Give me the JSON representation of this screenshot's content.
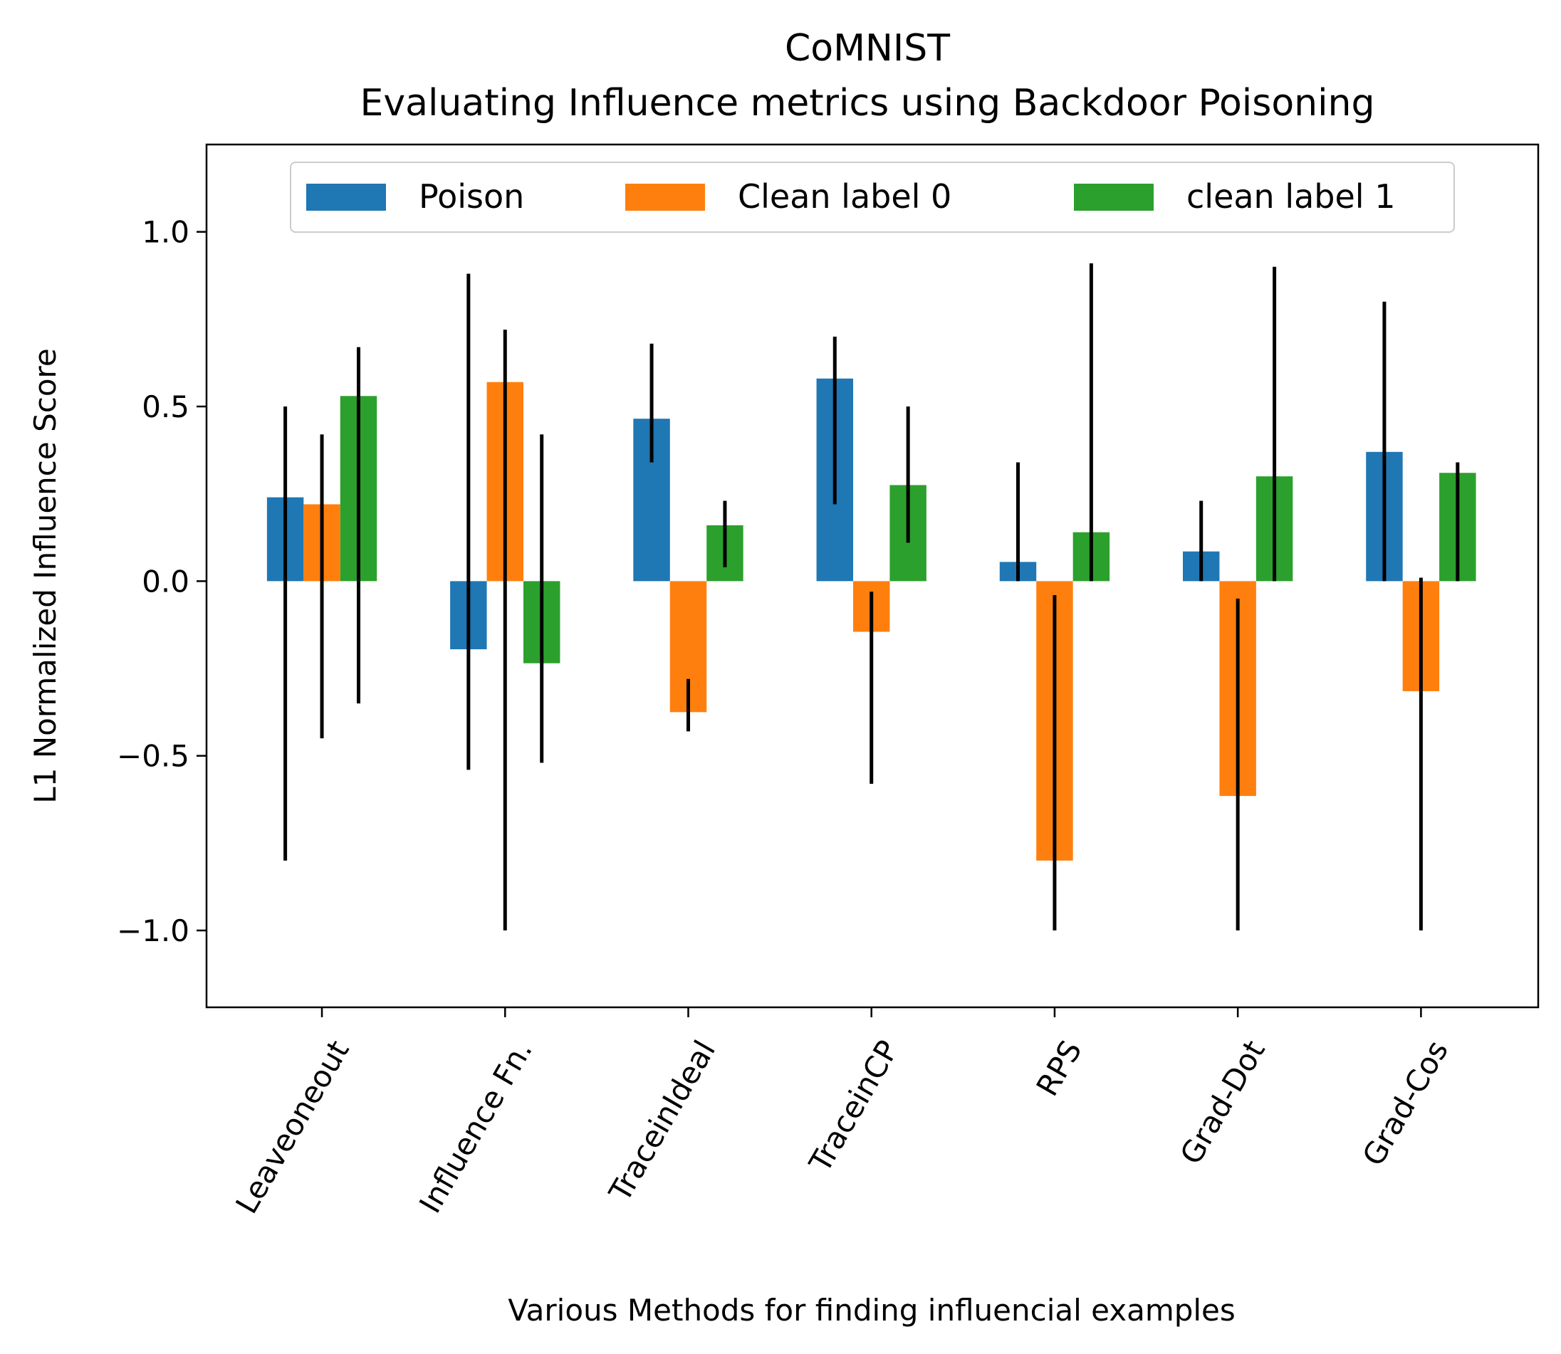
{
  "chart_data": {
    "type": "bar",
    "title_line1": "CoMNIST",
    "title_line2": "Evaluating Influence metrics using Backdoor Poisoning",
    "xlabel": "Various Methods for finding influencial examples",
    "ylabel": "L1 Normalized Influence Score",
    "ylim": [
      -1.22,
      1.25
    ],
    "yticks": [
      -1.0,
      -0.5,
      0.0,
      0.5,
      1.0
    ],
    "ytick_labels": [
      "−1.0",
      "−0.5",
      "0.0",
      "0.5",
      "1.0"
    ],
    "grid": false,
    "legend_position": "top-center",
    "categories": [
      "Leaveoneout",
      "Influence Fn.",
      "TraceinIdeal",
      "TraceinCP",
      "RPS",
      "Grad-Dot",
      "Grad-Cos"
    ],
    "series": [
      {
        "name": "Poison",
        "color": "#1f77b4",
        "values": [
          0.24,
          -0.195,
          0.465,
          0.58,
          0.055,
          0.085,
          0.37
        ],
        "error_low": [
          -0.8,
          -0.54,
          0.34,
          0.22,
          0.0,
          0.0,
          0.0
        ],
        "error_high": [
          0.5,
          0.88,
          0.68,
          0.7,
          0.34,
          0.23,
          0.8
        ]
      },
      {
        "name": "Clean label 0",
        "color": "#ff7f0e",
        "values": [
          0.22,
          0.57,
          -0.375,
          -0.145,
          -0.8,
          -0.615,
          -0.315
        ],
        "error_low": [
          -0.45,
          -1.0,
          -0.43,
          -0.58,
          -1.0,
          -1.0,
          -1.0
        ],
        "error_high": [
          0.42,
          0.72,
          -0.28,
          -0.03,
          -0.04,
          -0.05,
          0.01
        ]
      },
      {
        "name": "clean label 1",
        "color": "#2ca02c",
        "values": [
          0.53,
          -0.235,
          0.16,
          0.275,
          0.14,
          0.3,
          0.31
        ],
        "error_low": [
          -0.35,
          -0.52,
          0.04,
          0.11,
          0.0,
          0.0,
          0.0
        ],
        "error_high": [
          0.67,
          0.42,
          0.23,
          0.5,
          0.91,
          0.9,
          0.34
        ]
      }
    ]
  }
}
